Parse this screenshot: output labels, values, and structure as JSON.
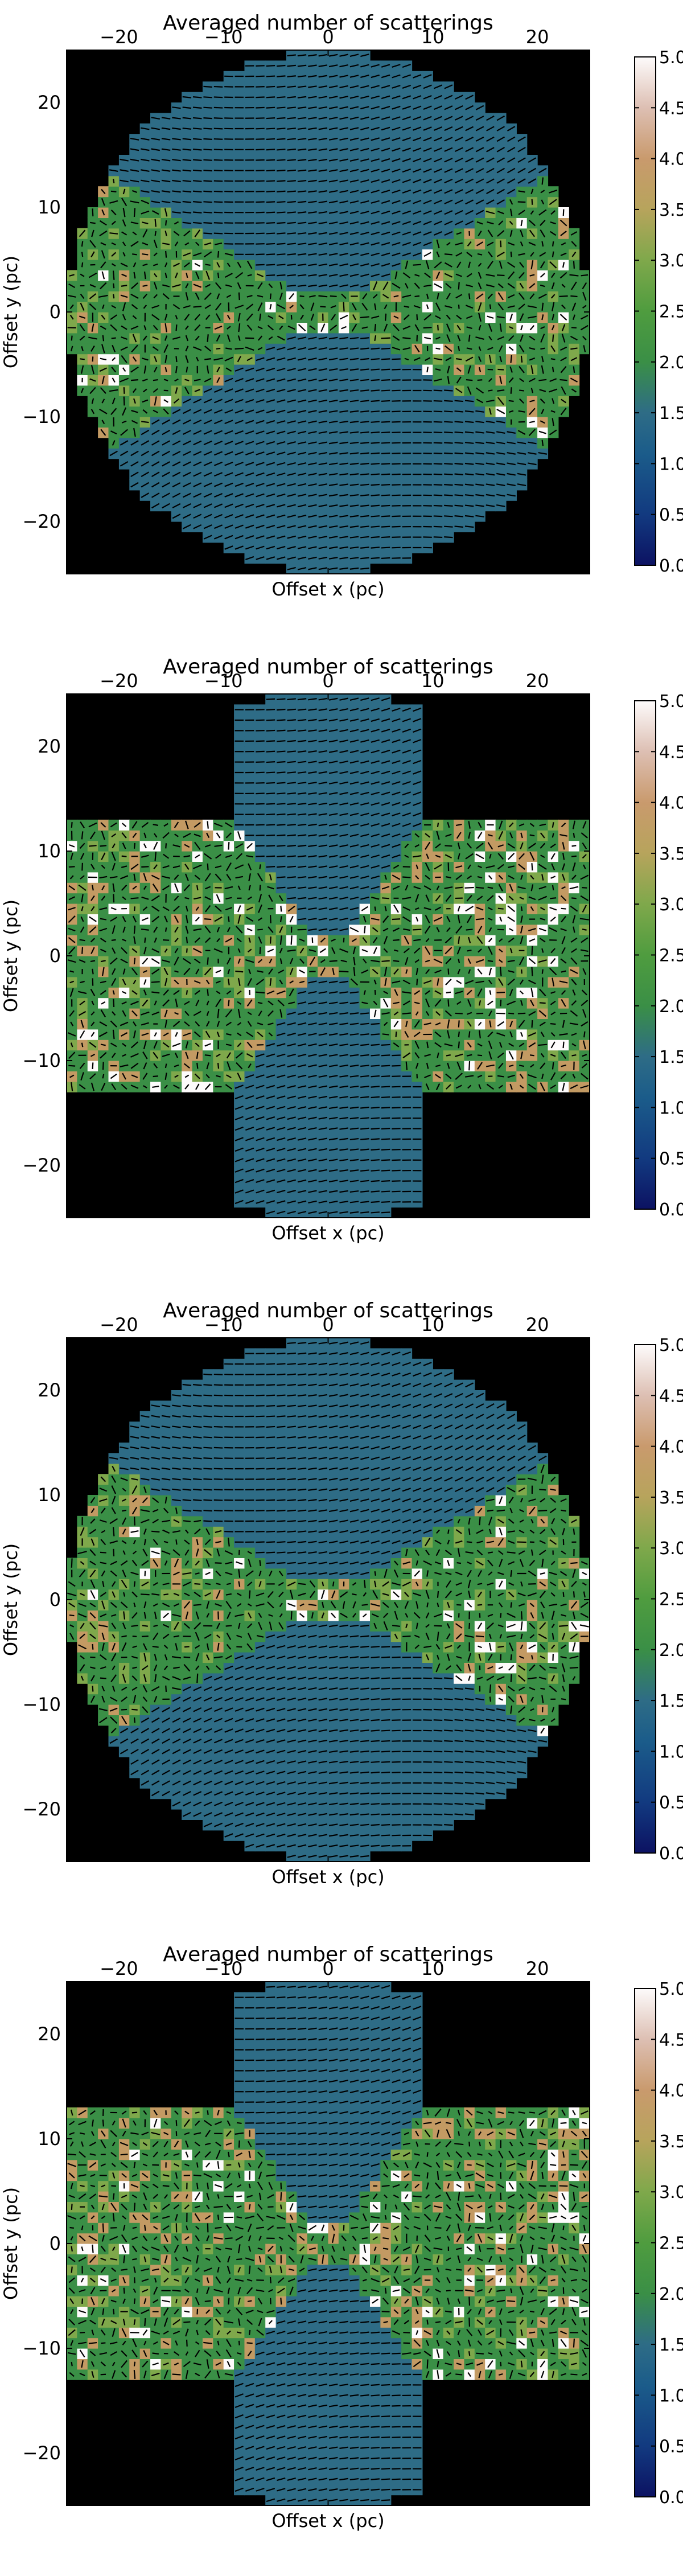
{
  "colors": {
    "background": "#000000",
    "low_region": "#2e6c86",
    "mid_region": "#3a8f46",
    "high_region": "#c39a63",
    "vectors": "#000000"
  },
  "colorbar": {
    "ticks": [
      "0.0",
      "0.5",
      "1.0",
      "1.5",
      "2.0",
      "2.5",
      "3.0",
      "3.5",
      "4.0",
      "4.5",
      "5.0"
    ],
    "range": [
      0,
      5
    ],
    "colormap": "gist_earth-like (navy → teal → green → tan → pink → white)"
  },
  "chart_data": [
    {
      "type": "heatmap",
      "title": "Averaged number of scatterings",
      "xlabel": "Offset x (pc)",
      "ylabel": "Offset y (pc)",
      "xticks": [
        "−20",
        "−10",
        "0",
        "10",
        "20"
      ],
      "yticks": [
        "20",
        "10",
        "0",
        "−10",
        "−20"
      ],
      "xlim": [
        -25,
        25
      ],
      "ylim": [
        -25,
        25
      ],
      "geometry": "circle",
      "cone_regions": "polar cones ~1.3 scatterings, equatorial torus ~2–3.5 scatterings",
      "overlay": "polarization vectors"
    },
    {
      "type": "heatmap",
      "title": "Averaged number of scatterings",
      "xlabel": "Offset x (pc)",
      "ylabel": "Offset y (pc)",
      "xticks": [
        "−20",
        "−10",
        "0",
        "10",
        "20"
      ],
      "yticks": [
        "20",
        "10",
        "0",
        "−10",
        "−20"
      ],
      "xlim": [
        -25,
        25
      ],
      "ylim": [
        -25,
        25
      ],
      "geometry": "cross",
      "cone_regions": "polar cones ~1.3 scatterings, equatorial blocks ~2–5 scatterings",
      "overlay": "polarization vectors"
    },
    {
      "type": "heatmap",
      "title": "Averaged number of scatterings",
      "xlabel": "Offset x (pc)",
      "ylabel": "Offset y (pc)",
      "xticks": [
        "−20",
        "−10",
        "0",
        "10",
        "20"
      ],
      "yticks": [
        "20",
        "10",
        "0",
        "−10",
        "−20"
      ],
      "xlim": [
        -25,
        25
      ],
      "ylim": [
        -25,
        25
      ],
      "geometry": "circle",
      "cone_regions": "polar cones ~1.3 scatterings, equatorial torus ~2–3 scatterings",
      "overlay": "polarization vectors"
    },
    {
      "type": "heatmap",
      "title": "Averaged number of scatterings",
      "xlabel": "Offset x (pc)",
      "ylabel": "Offset y (pc)",
      "xticks": [
        "−20",
        "−10",
        "0",
        "10",
        "20"
      ],
      "yticks": [
        "20",
        "10",
        "0",
        "−10",
        "−20"
      ],
      "xlim": [
        -25,
        25
      ],
      "ylim": [
        -25,
        25
      ],
      "geometry": "cross",
      "cone_regions": "polar cones ~1.3 scatterings, equatorial blocks ~2–4.5 scatterings",
      "overlay": "polarization vectors"
    }
  ]
}
